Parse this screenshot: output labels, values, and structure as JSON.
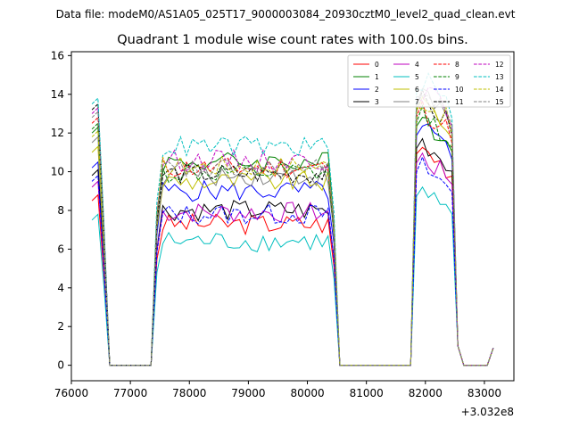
{
  "header": {
    "suptitle": "Data file: modeM0/AS1A05_025T17_9000003084_20930cztM0_level2_quad_clean.evt"
  },
  "chart_data": {
    "type": "line",
    "title": "Quadrant 1 module wise count rates with 100.0s bins.",
    "xlabel": "",
    "ylabel": "",
    "x_offset_label": "+3.032e8",
    "xlim": [
      76000,
      83500
    ],
    "ylim": [
      -0.8,
      16.2
    ],
    "xticks": [
      76000,
      77000,
      78000,
      79000,
      80000,
      81000,
      82000,
      83000
    ],
    "xtick_labels": [
      "76000",
      "77000",
      "78000",
      "79000",
      "80000",
      "81000",
      "82000",
      "83000"
    ],
    "yticks": [
      0,
      2,
      4,
      6,
      8,
      10,
      12,
      14,
      16
    ],
    "ytick_labels": [
      "0",
      "2",
      "4",
      "6",
      "8",
      "10",
      "12",
      "14",
      "16"
    ],
    "grid": false,
    "legend_position": "top-right",
    "legend_columns": 4,
    "x": [
      76350,
      76450,
      76550,
      76650,
      76750,
      76850,
      76950,
      77050,
      77150,
      77250,
      77350,
      77450,
      77550,
      77650,
      77750,
      77850,
      77950,
      78050,
      78150,
      78250,
      78350,
      78450,
      78550,
      78650,
      78750,
      78850,
      78950,
      79050,
      79150,
      79250,
      79350,
      79450,
      79550,
      79650,
      79750,
      79850,
      79950,
      80050,
      80150,
      80250,
      80350,
      80450,
      80550,
      80650,
      80750,
      80850,
      80950,
      81050,
      81150,
      81250,
      81350,
      81450,
      81550,
      81650,
      81750,
      81850,
      81950,
      82050,
      82150,
      82250,
      82350,
      82450,
      82550,
      82650,
      82750,
      82850,
      82950,
      83050,
      83150
    ],
    "segments": [
      {
        "from": 0,
        "to": 3
      },
      {
        "from": 3,
        "to": 11,
        "level": "off"
      },
      {
        "from": 11,
        "to": 41,
        "level": "on"
      },
      {
        "from": 41,
        "to": 55,
        "level": "off"
      },
      {
        "from": 55,
        "to": 62,
        "level": "peak"
      },
      {
        "from": 62,
        "to": 69,
        "level": "off"
      }
    ],
    "series": [
      {
        "name": "0",
        "color": "#ff0000",
        "dash": "solid",
        "start": 8.5,
        "level": 7.3,
        "peak": 11.5
      },
      {
        "name": "1",
        "color": "#008000",
        "dash": "solid",
        "start": 12.0,
        "level": 10.5,
        "peak": 13.0
      },
      {
        "name": "2",
        "color": "#0000ff",
        "dash": "solid",
        "start": 10.2,
        "level": 9.0,
        "peak": 12.5
      },
      {
        "name": "3",
        "color": "#000000",
        "dash": "solid",
        "start": 9.8,
        "level": 8.0,
        "peak": 11.8
      },
      {
        "name": "4",
        "color": "#bf00bf",
        "dash": "solid",
        "start": 9.2,
        "level": 7.9,
        "peak": 11.0
      },
      {
        "name": "5",
        "color": "#00bfbf",
        "dash": "solid",
        "start": 7.5,
        "level": 6.4,
        "peak": 9.2
      },
      {
        "name": "6",
        "color": "#bfbf00",
        "dash": "solid",
        "start": 11.0,
        "level": 9.5,
        "peak": 13.8
      },
      {
        "name": "7",
        "color": "#808080",
        "dash": "solid",
        "start": 11.5,
        "level": 9.8,
        "peak": 14.2
      },
      {
        "name": "8",
        "color": "#ff0000",
        "dash": "dashed",
        "start": 12.5,
        "level": 10.2,
        "peak": 13.5
      },
      {
        "name": "9",
        "color": "#008000",
        "dash": "dashed",
        "start": 12.2,
        "level": 9.9,
        "peak": 13.2
      },
      {
        "name": "10",
        "color": "#0000ff",
        "dash": "dashed",
        "start": 9.5,
        "level": 7.8,
        "peak": 10.5
      },
      {
        "name": "11",
        "color": "#000000",
        "dash": "dashed",
        "start": 13.2,
        "level": 9.9,
        "peak": 13.9
      },
      {
        "name": "12",
        "color": "#bf00bf",
        "dash": "dashed",
        "start": 13.0,
        "level": 10.6,
        "peak": 14.5
      },
      {
        "name": "13",
        "color": "#00bfbf",
        "dash": "dashed",
        "start": 13.5,
        "level": 11.3,
        "peak": 15.0
      },
      {
        "name": "14",
        "color": "#bfbf00",
        "dash": "dashed",
        "start": 11.8,
        "level": 10.3,
        "peak": 14.0
      },
      {
        "name": "15",
        "color": "#808080",
        "dash": "dashed",
        "start": 12.8,
        "level": 10.1,
        "peak": 14.6
      }
    ]
  }
}
